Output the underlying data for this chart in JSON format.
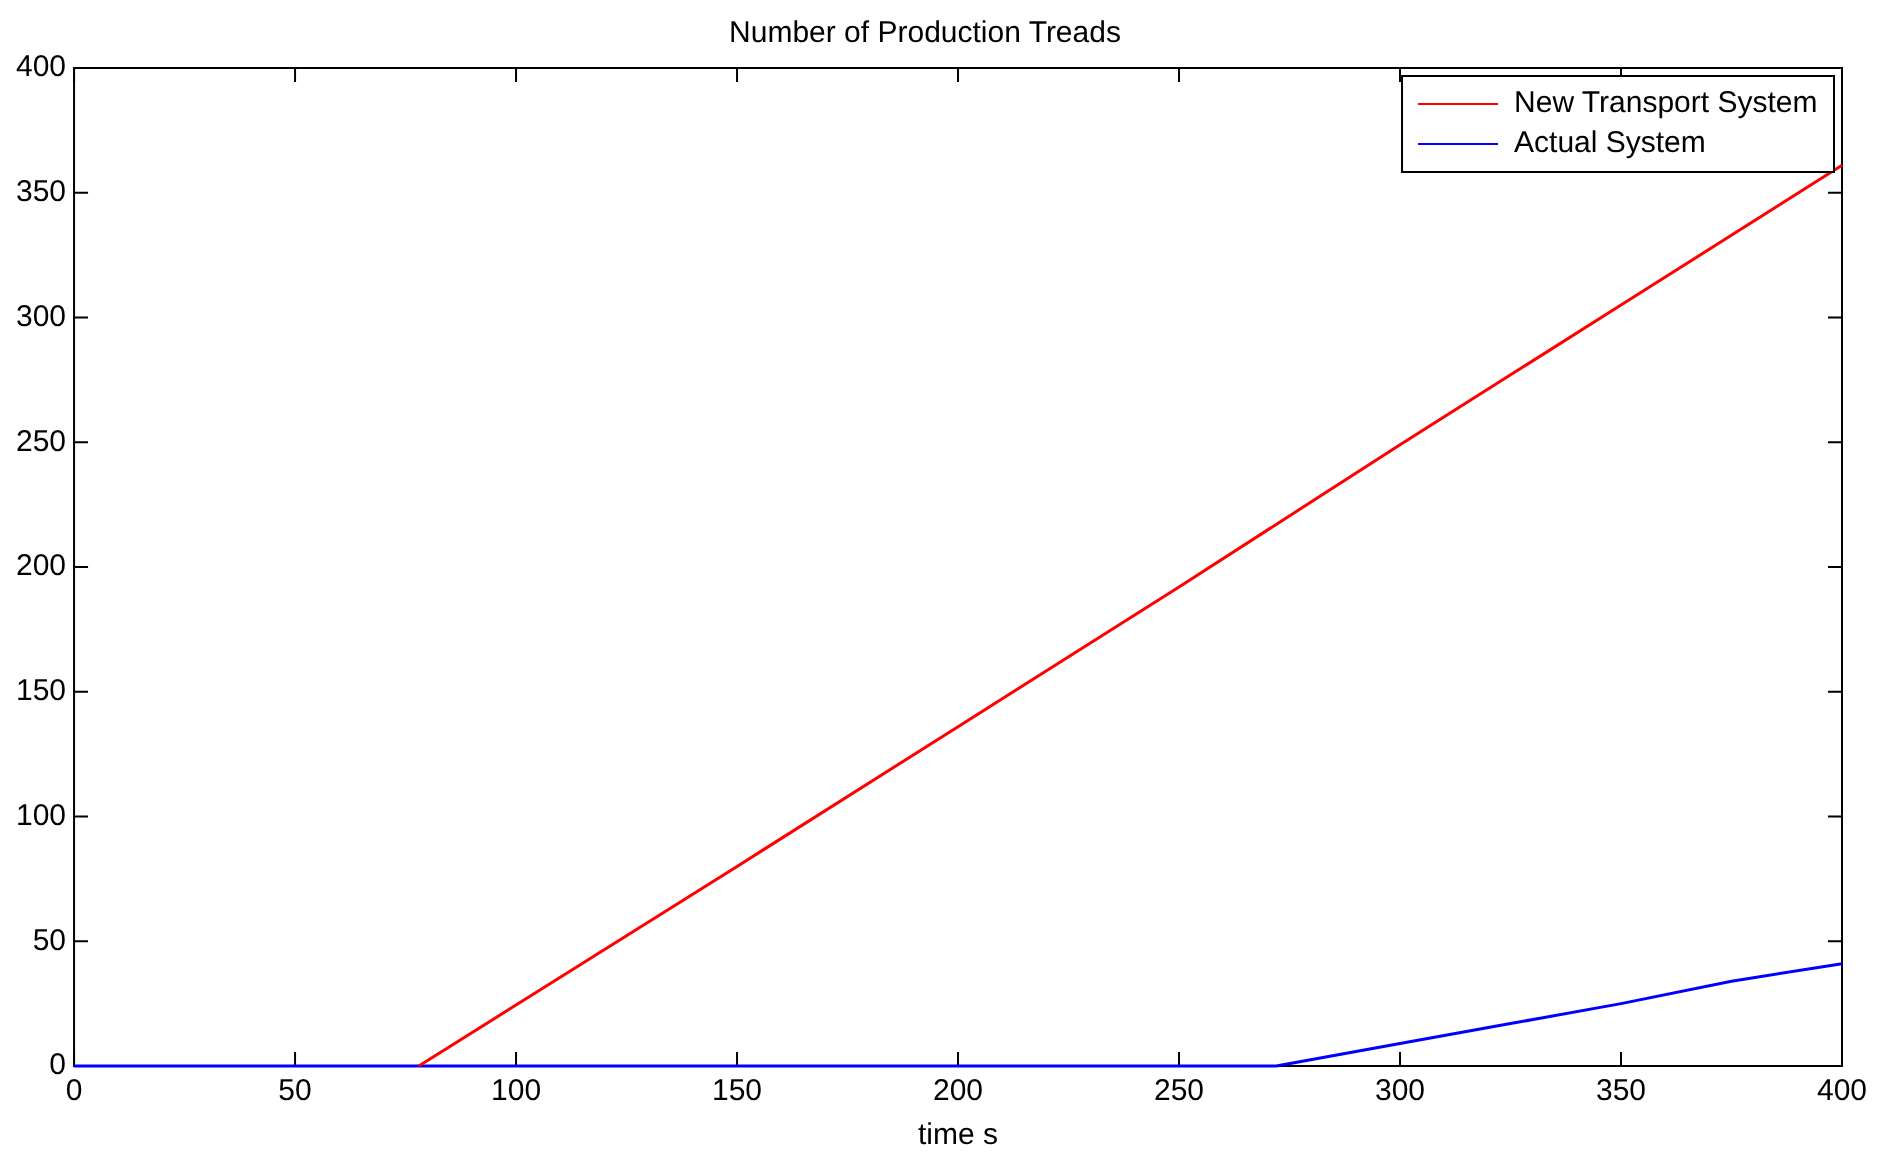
{
  "chart_data": {
    "type": "line",
    "title": "Number of Production Treads",
    "xlabel": "time s",
    "xlim": [
      0,
      400
    ],
    "xticks": [
      0,
      50,
      100,
      150,
      200,
      250,
      300,
      350,
      400
    ],
    "ylim": [
      0,
      400
    ],
    "yticks": [
      0,
      50,
      100,
      150,
      200,
      250,
      300,
      350,
      400
    ],
    "grid": false,
    "legend": "top right",
    "marker": "none",
    "line_style": "solid",
    "series": [
      {
        "name": "New Transport System",
        "color": "#ff0000",
        "x": [
          78,
          150,
          200,
          250,
          300,
          350,
          400
        ],
        "values": [
          0,
          80,
          136,
          192,
          249,
          305,
          361
        ]
      },
      {
        "name": "Actual System",
        "color": "#0000ff",
        "x": [
          0,
          272,
          300,
          325,
          350,
          375,
          400
        ],
        "values": [
          0,
          0,
          9,
          17,
          25,
          34,
          41
        ]
      }
    ]
  }
}
